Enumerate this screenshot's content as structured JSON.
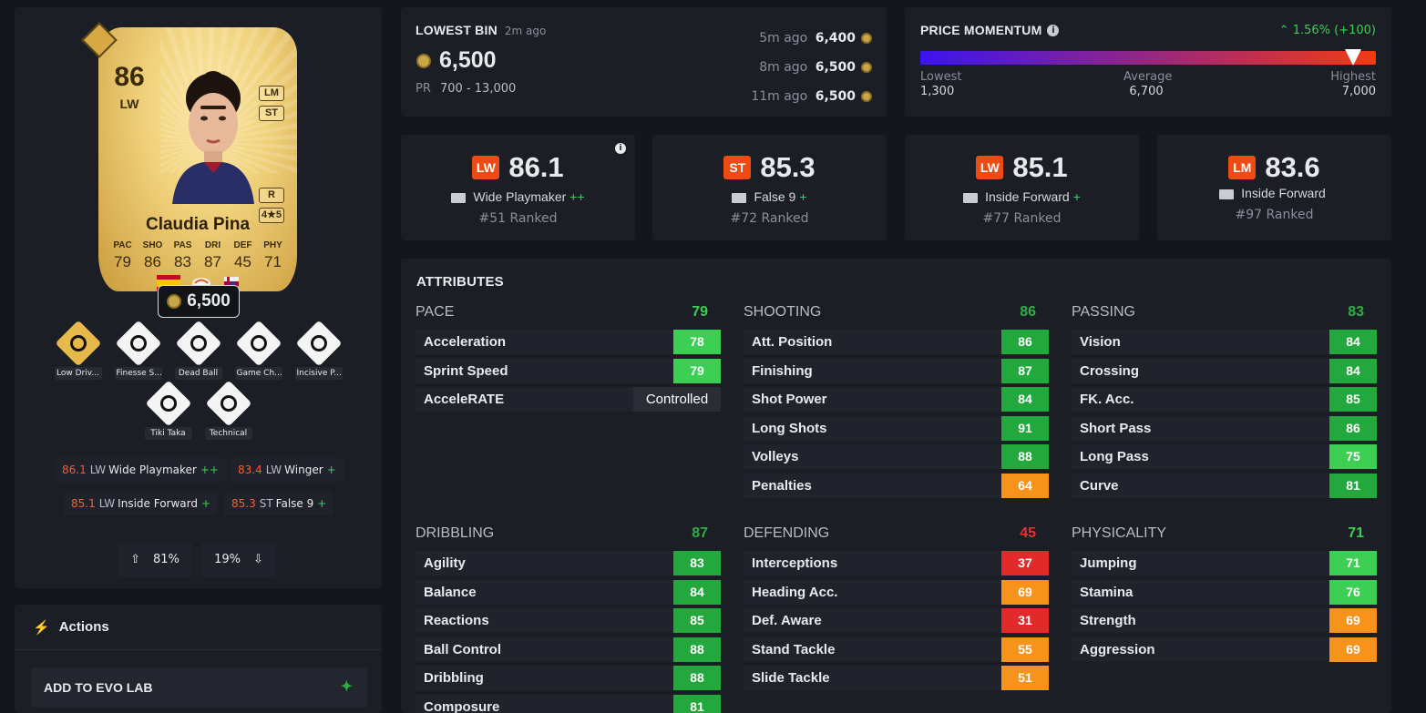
{
  "card": {
    "rating": "86",
    "position": "LW",
    "alt_positions": [
      "LM",
      "ST"
    ],
    "foot": "R",
    "skills_weak": "4★5",
    "name": "Claudia Pina",
    "stat_labels": [
      "PAC",
      "SHO",
      "PAS",
      "DRI",
      "DEF",
      "PHY"
    ],
    "stat_values": [
      "79",
      "86",
      "83",
      "87",
      "45",
      "71"
    ],
    "price": "6,500"
  },
  "playstyles": [
    {
      "label": "Low Driv...",
      "icon": "low-driven-shot-icon",
      "gold": true
    },
    {
      "label": "Finesse S...",
      "icon": "finesse-shot-icon",
      "gold": false
    },
    {
      "label": "Dead Ball",
      "icon": "dead-ball-icon",
      "gold": false
    },
    {
      "label": "Game Ch...",
      "icon": "game-changer-icon",
      "gold": false
    },
    {
      "label": "Incisive P...",
      "icon": "incisive-pass-icon",
      "gold": false
    },
    {
      "label": "Tiki Taka",
      "icon": "tiki-taka-icon",
      "gold": false
    },
    {
      "label": "Technical",
      "icon": "technical-icon",
      "gold": false
    }
  ],
  "roles": [
    {
      "value": "86.1",
      "pos": "LW",
      "name": "Wide Playmaker",
      "plus": "++"
    },
    {
      "value": "83.4",
      "pos": "LW",
      "name": "Winger",
      "plus": "+"
    },
    {
      "value": "85.1",
      "pos": "LW",
      "name": "Inside Forward",
      "plus": "+"
    },
    {
      "value": "85.3",
      "pos": "ST",
      "name": "False 9",
      "plus": "+"
    }
  ],
  "votes": {
    "up": "81%",
    "down": "19%"
  },
  "actions": {
    "title": "Actions",
    "evo_button": "ADD TO EVO LAB"
  },
  "bin": {
    "title": "LOWEST BIN",
    "ago": "2m ago",
    "price": "6,500",
    "pr_label": "PR",
    "pr_range": "700 - 13,000",
    "history": [
      {
        "ago": "5m ago",
        "price": "6,400"
      },
      {
        "ago": "8m ago",
        "price": "6,500"
      },
      {
        "ago": "11m ago",
        "price": "6,500"
      }
    ]
  },
  "momentum": {
    "title": "PRICE MOMENTUM",
    "change": "1.56% (+100)",
    "lowest_label": "Lowest",
    "lowest": "1,300",
    "average_label": "Average",
    "average": "6,700",
    "highest_label": "Highest",
    "highest": "7,000",
    "marker_fraction": 0.95,
    "colors": {
      "start": "#3a14f0",
      "end": "#f23a12",
      "up": "#3ccf54"
    }
  },
  "role_cards": [
    {
      "pos": "LW",
      "value": "86.1",
      "name": "Wide Playmaker",
      "plus": "++",
      "rank": "#51 Ranked",
      "pos_color": "#ee4a14"
    },
    {
      "pos": "ST",
      "value": "85.3",
      "name": "False 9",
      "plus": "+",
      "rank": "#72 Ranked",
      "pos_color": "#ee4a14"
    },
    {
      "pos": "LW",
      "value": "85.1",
      "name": "Inside Forward",
      "plus": "+",
      "rank": "#77 Ranked",
      "pos_color": "#ee4a14"
    },
    {
      "pos": "LM",
      "value": "83.6",
      "name": "Inside Forward",
      "plus": "",
      "rank": "#97 Ranked",
      "pos_color": "#ee4a14"
    }
  ],
  "attributes": {
    "title": "ATTRIBUTES",
    "groups": [
      {
        "name": "PACE",
        "value": "79",
        "color": "#3ccf54",
        "rows": [
          {
            "n": "Acceleration",
            "v": "78",
            "c": "#3ccf54"
          },
          {
            "n": "Sprint Speed",
            "v": "79",
            "c": "#3ccf54"
          },
          {
            "n": "AcceleRATE",
            "v": "Controlled",
            "c": "text"
          }
        ]
      },
      {
        "name": "SHOOTING",
        "value": "86",
        "color": "#2fae45",
        "rows": [
          {
            "n": "Att. Position",
            "v": "86",
            "c": "#22a83c"
          },
          {
            "n": "Finishing",
            "v": "87",
            "c": "#22a83c"
          },
          {
            "n": "Shot Power",
            "v": "84",
            "c": "#22a83c"
          },
          {
            "n": "Long Shots",
            "v": "91",
            "c": "#22a83c"
          },
          {
            "n": "Volleys",
            "v": "88",
            "c": "#22a83c"
          },
          {
            "n": "Penalties",
            "v": "64",
            "c": "#f7931a"
          }
        ]
      },
      {
        "name": "PASSING",
        "value": "83",
        "color": "#2fae45",
        "rows": [
          {
            "n": "Vision",
            "v": "84",
            "c": "#22a83c"
          },
          {
            "n": "Crossing",
            "v": "84",
            "c": "#22a83c"
          },
          {
            "n": "FK. Acc.",
            "v": "85",
            "c": "#22a83c"
          },
          {
            "n": "Short Pass",
            "v": "86",
            "c": "#22a83c"
          },
          {
            "n": "Long Pass",
            "v": "75",
            "c": "#3ccf54"
          },
          {
            "n": "Curve",
            "v": "81",
            "c": "#22a83c"
          }
        ]
      },
      {
        "name": "DRIBBLING",
        "value": "87",
        "color": "#2fae45",
        "rows": [
          {
            "n": "Agility",
            "v": "83",
            "c": "#22a83c"
          },
          {
            "n": "Balance",
            "v": "84",
            "c": "#22a83c"
          },
          {
            "n": "Reactions",
            "v": "85",
            "c": "#22a83c"
          },
          {
            "n": "Ball Control",
            "v": "88",
            "c": "#22a83c"
          },
          {
            "n": "Dribbling",
            "v": "88",
            "c": "#22a83c"
          },
          {
            "n": "Composure",
            "v": "81",
            "c": "#22a83c"
          }
        ]
      },
      {
        "name": "DEFENDING",
        "value": "45",
        "color": "#e83030",
        "rows": [
          {
            "n": "Interceptions",
            "v": "37",
            "c": "#e32a2a"
          },
          {
            "n": "Heading Acc.",
            "v": "69",
            "c": "#f7931a"
          },
          {
            "n": "Def. Aware",
            "v": "31",
            "c": "#e32a2a"
          },
          {
            "n": "Stand Tackle",
            "v": "55",
            "c": "#f7931a"
          },
          {
            "n": "Slide Tackle",
            "v": "51",
            "c": "#f7931a"
          }
        ]
      },
      {
        "name": "PHYSICALITY",
        "value": "71",
        "color": "#3ccf54",
        "rows": [
          {
            "n": "Jumping",
            "v": "71",
            "c": "#3ccf54"
          },
          {
            "n": "Stamina",
            "v": "76",
            "c": "#3ccf54"
          },
          {
            "n": "Strength",
            "v": "69",
            "c": "#f7931a"
          },
          {
            "n": "Aggression",
            "v": "69",
            "c": "#f7931a"
          }
        ]
      }
    ]
  }
}
